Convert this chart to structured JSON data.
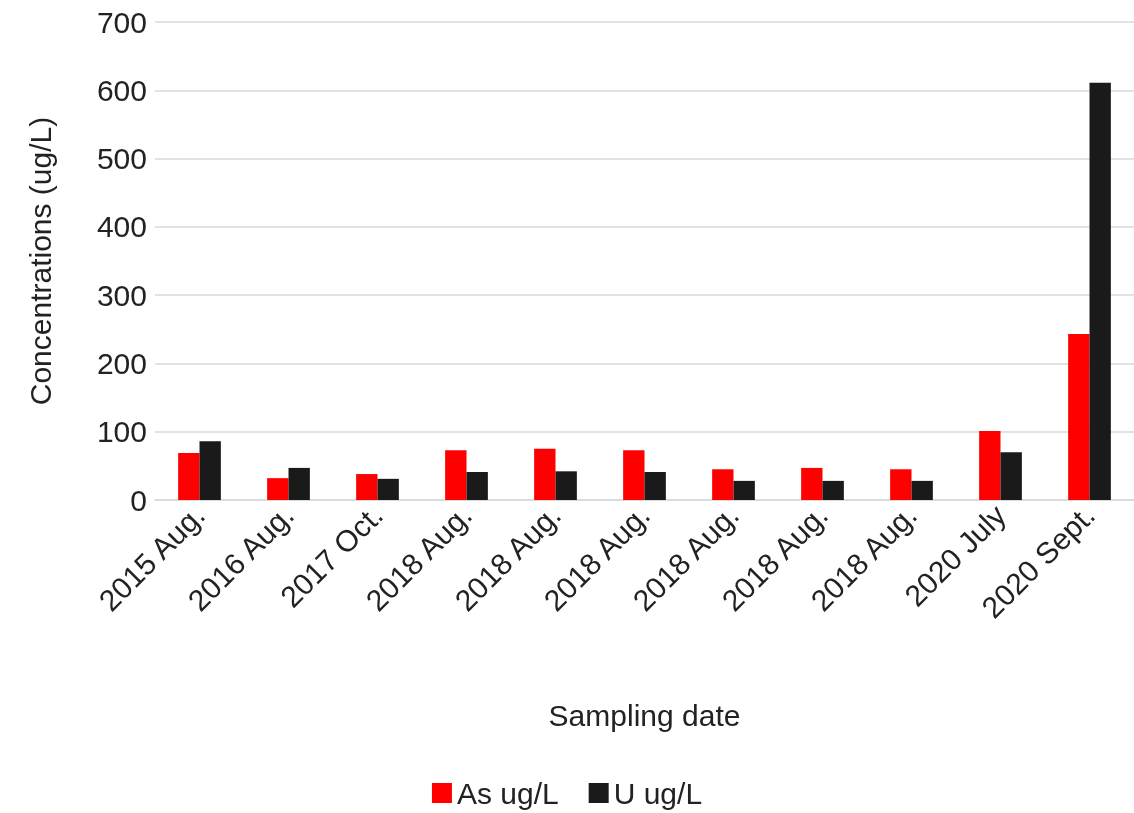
{
  "chart_data": {
    "type": "bar",
    "xlabel": "Sampling date",
    "ylabel": "Concentrations (ug/L)",
    "categories": [
      "2015 Aug.",
      "2016 Aug.",
      "2017 Oct.",
      "2018 Aug.",
      "2018 Aug.",
      "2018 Aug.",
      "2018 Aug.",
      "2018 Aug.",
      "2018 Aug.",
      "2020 July",
      "2020 Sept."
    ],
    "series": [
      {
        "name": "As ug/L",
        "color": "#ff0000",
        "values": [
          69,
          32,
          38,
          73,
          75,
          73,
          45,
          47,
          45,
          101,
          243
        ]
      },
      {
        "name": "U ug/L",
        "color": "#1a1a1a",
        "values": [
          86,
          47,
          31,
          41,
          42,
          41,
          28,
          28,
          28,
          70,
          611
        ]
      }
    ],
    "ylim": [
      0,
      700
    ],
    "yticks": [
      0,
      100,
      200,
      300,
      400,
      500,
      600,
      700
    ],
    "grid": "y",
    "legend": "bottom"
  }
}
